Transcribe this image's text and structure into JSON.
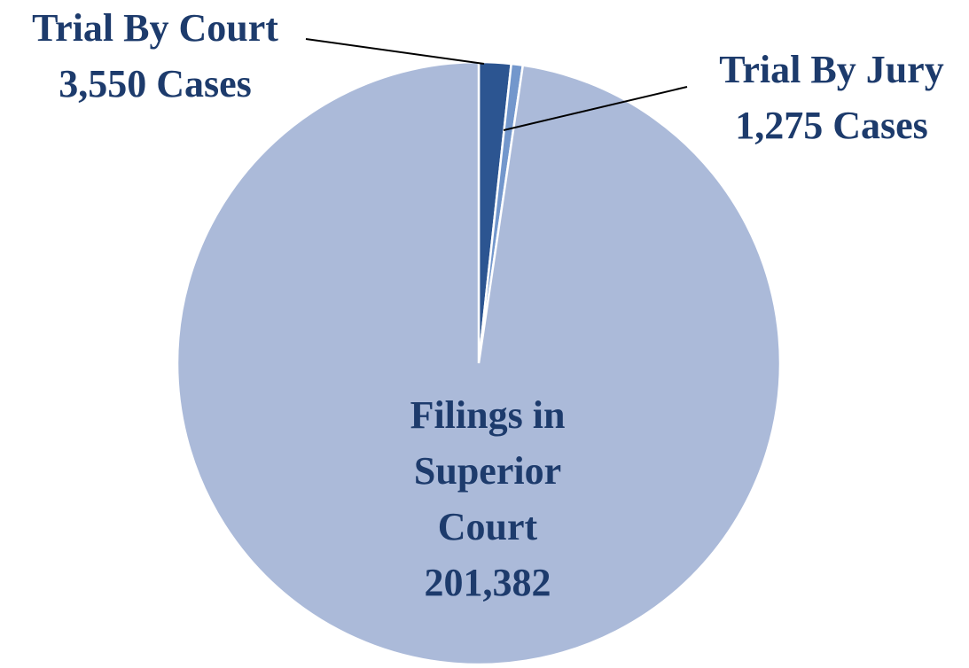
{
  "chart_data": {
    "type": "pie",
    "categories": [
      "Trial By Court",
      "Trial By Jury",
      "Filings in Superior Court"
    ],
    "values": [
      3550,
      1275,
      201382
    ],
    "value_labels": [
      "3,550 Cases",
      "1,275 Cases",
      "201,382"
    ],
    "colors": [
      "#2c5591",
      "#7397cc",
      "#abbad9"
    ]
  }
}
